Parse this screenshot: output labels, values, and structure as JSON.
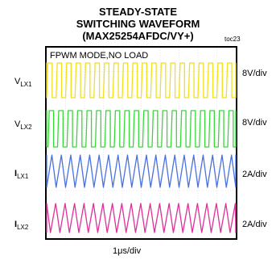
{
  "title_lines": [
    "STEADY-STATE",
    "SWITCHING WAVEFORM",
    "(MAX25254AFDC/VY+)"
  ],
  "figure_tag": "toc23",
  "chart_data": {
    "type": "line",
    "annotation": "FPWM MODE,NO LOAD",
    "xlabel": "1μs/div",
    "grid": true,
    "x_divisions": 10,
    "y_divisions": 8,
    "series": [
      {
        "name": "LX1",
        "name_sub": "LX1",
        "name_main": "V",
        "scale": "8V/div",
        "color": "#f0e020",
        "shape": "square",
        "cycles": 20
      },
      {
        "name": "LX2",
        "name_sub": "LX2",
        "name_main": "V",
        "scale": "8V/div",
        "color": "#38d838",
        "shape": "square",
        "cycles": 20
      },
      {
        "name": "LX1",
        "name_sub": "LX1",
        "name_main": "I",
        "scale": "2A/div",
        "color": "#4a72e0",
        "shape": "triangle",
        "cycles": 20
      },
      {
        "name": "LX2",
        "name_sub": "LX2",
        "name_main": "I",
        "scale": "2A/div",
        "color": "#e0309a",
        "shape": "triangle",
        "cycles": 20
      }
    ]
  }
}
